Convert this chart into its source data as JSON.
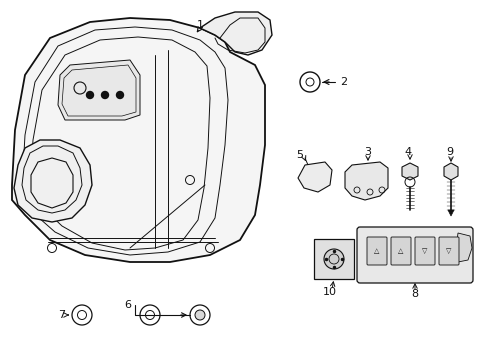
{
  "background_color": "#ffffff",
  "line_color": "#111111",
  "fig_width": 4.89,
  "fig_height": 3.6,
  "dpi": 100
}
